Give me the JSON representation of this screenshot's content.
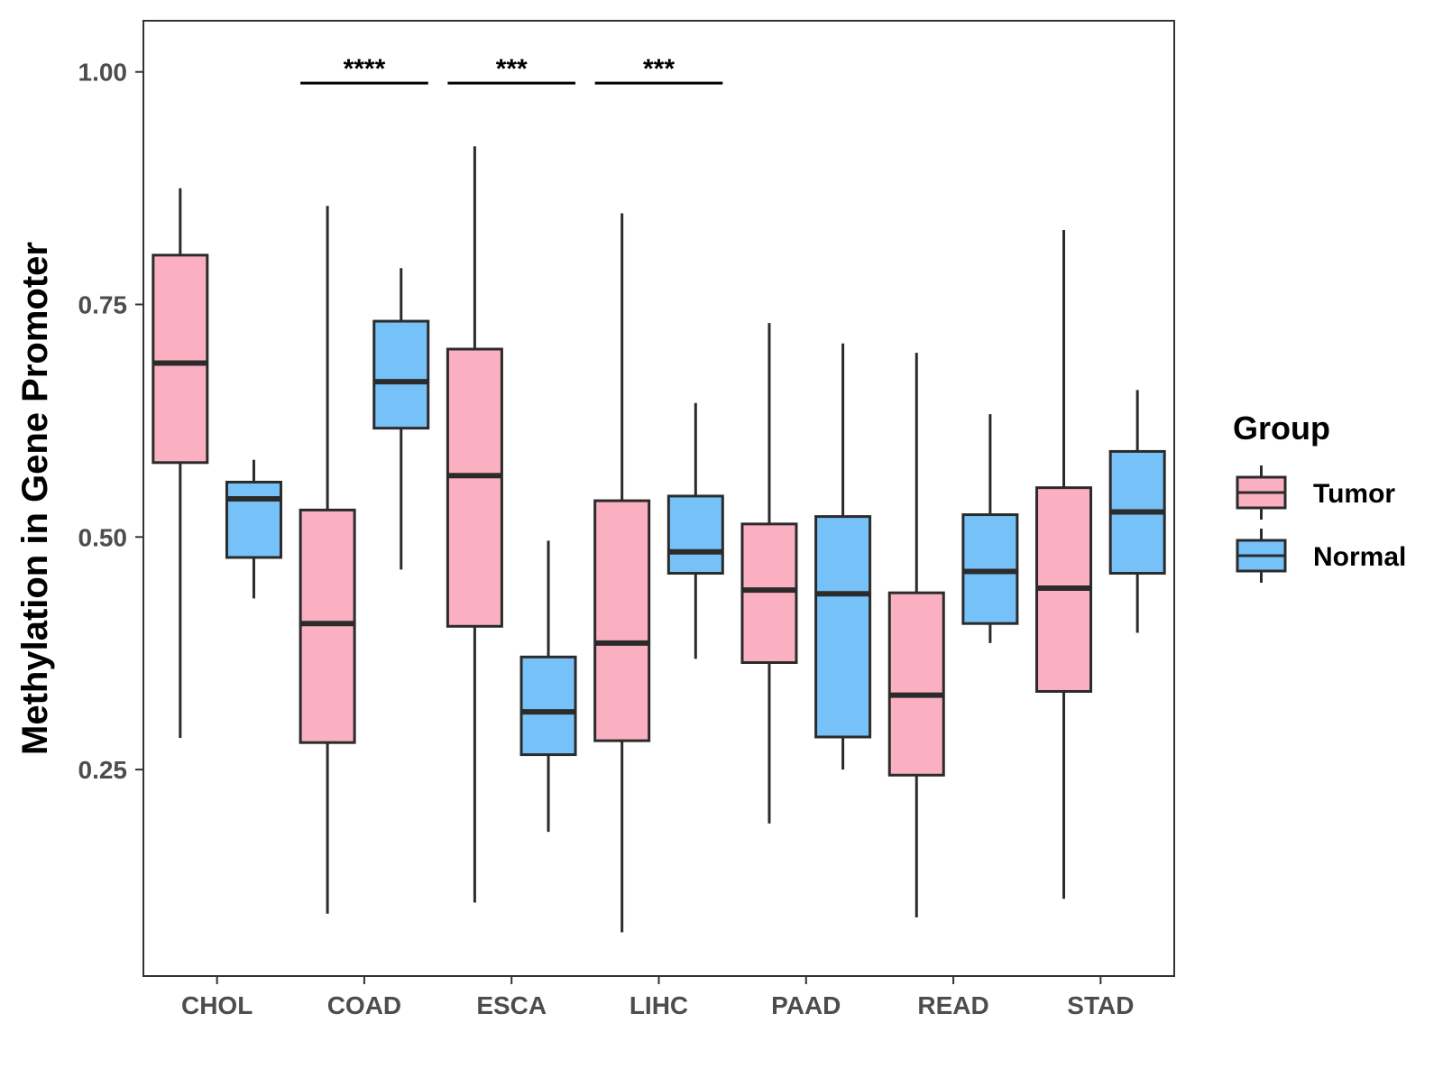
{
  "chart_data": {
    "type": "boxplot",
    "title": "",
    "xlabel": "",
    "ylabel": "Methylation in Gene Promoter",
    "ylim": [
      0.028,
      1.055
    ],
    "y_ticks": [
      0.25,
      0.5,
      0.75,
      1.0
    ],
    "y_tick_labels": [
      "0.25",
      "0.50",
      "0.75",
      "1.00"
    ],
    "grid": false,
    "categories": [
      "CHOL",
      "COAD",
      "ESCA",
      "LIHC",
      "PAAD",
      "READ",
      "STAD"
    ],
    "legend": {
      "title": "Group",
      "position": "right",
      "entries": [
        {
          "name": "Tumor",
          "color": "#FBB0C2"
        },
        {
          "name": "Normal",
          "color": "#76C1F8"
        }
      ]
    },
    "series": [
      {
        "name": "Tumor",
        "color": "#FBB0C2",
        "boxes": [
          {
            "category": "CHOL",
            "whisker_low": 0.284,
            "q1": 0.58,
            "median": 0.687,
            "q3": 0.803,
            "whisker_high": 0.875
          },
          {
            "category": "COAD",
            "whisker_low": 0.095,
            "q1": 0.279,
            "median": 0.407,
            "q3": 0.529,
            "whisker_high": 0.856
          },
          {
            "category": "ESCA",
            "whisker_low": 0.107,
            "q1": 0.404,
            "median": 0.566,
            "q3": 0.702,
            "whisker_high": 0.92
          },
          {
            "category": "LIHC",
            "whisker_low": 0.075,
            "q1": 0.281,
            "median": 0.386,
            "q3": 0.539,
            "whisker_high": 0.848
          },
          {
            "category": "PAAD",
            "whisker_low": 0.192,
            "q1": 0.365,
            "median": 0.443,
            "q3": 0.514,
            "whisker_high": 0.73
          },
          {
            "category": "READ",
            "whisker_low": 0.091,
            "q1": 0.244,
            "median": 0.33,
            "q3": 0.44,
            "whisker_high": 0.698
          },
          {
            "category": "STAD",
            "whisker_low": 0.111,
            "q1": 0.334,
            "median": 0.445,
            "q3": 0.553,
            "whisker_high": 0.83
          }
        ]
      },
      {
        "name": "Normal",
        "color": "#76C1F8",
        "boxes": [
          {
            "category": "CHOL",
            "whisker_low": 0.434,
            "q1": 0.478,
            "median": 0.541,
            "q3": 0.559,
            "whisker_high": 0.583
          },
          {
            "category": "COAD",
            "whisker_low": 0.465,
            "q1": 0.617,
            "median": 0.667,
            "q3": 0.732,
            "whisker_high": 0.789
          },
          {
            "category": "ESCA",
            "whisker_low": 0.183,
            "q1": 0.266,
            "median": 0.312,
            "q3": 0.371,
            "whisker_high": 0.496
          },
          {
            "category": "LIHC",
            "whisker_low": 0.369,
            "q1": 0.461,
            "median": 0.484,
            "q3": 0.544,
            "whisker_high": 0.644
          },
          {
            "category": "PAAD",
            "whisker_low": 0.25,
            "q1": 0.285,
            "median": 0.439,
            "q3": 0.522,
            "whisker_high": 0.708
          },
          {
            "category": "READ",
            "whisker_low": 0.386,
            "q1": 0.407,
            "median": 0.463,
            "q3": 0.524,
            "whisker_high": 0.632
          },
          {
            "category": "STAD",
            "whisker_low": 0.397,
            "q1": 0.461,
            "median": 0.527,
            "q3": 0.592,
            "whisker_high": 0.658
          }
        ]
      }
    ],
    "annotations": [
      {
        "category": "COAD",
        "label": "****",
        "y": 0.988
      },
      {
        "category": "ESCA",
        "label": "***",
        "y": 0.988
      },
      {
        "category": "LIHC",
        "label": "***",
        "y": 0.988
      }
    ]
  }
}
